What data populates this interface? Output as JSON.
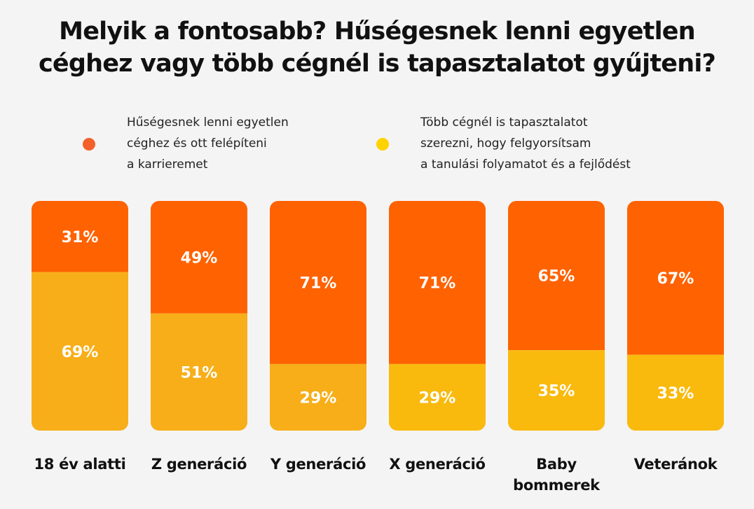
{
  "chart_data": {
    "type": "bar",
    "stacked": true,
    "title": "Melyik a  fontosabb? Hűségesnek lenni egyetlen\ncéghez vagy több cégnél is tapasztalatot gyűjteni?",
    "categories": [
      "18 év alatti",
      "Z generáció",
      "Y generáció",
      "X generáció",
      "Baby\nbommerek",
      "Veteránok"
    ],
    "series": [
      {
        "name": "Hűségesnek lenni egyetlen\ncéghez és ott felépíteni\na karrieremet",
        "values": [
          31,
          49,
          71,
          71,
          65,
          67
        ],
        "labels": [
          "31%",
          "49%",
          "71%",
          "71%",
          "65%",
          "67%"
        ],
        "color": "#FF6200"
      },
      {
        "name": "Több cégnél is tapasztalatot\nszerezni, hogy felgyorsítsam\na tanulási folyamatot és a fejlődést",
        "values": [
          69,
          51,
          29,
          29,
          35,
          33
        ],
        "labels": [
          "69%",
          "51%",
          "29%",
          "29%",
          "35%",
          "33%"
        ],
        "colors": [
          "#F7AE18",
          "#F7AE18",
          "#F7AE18",
          "#F9BA0D",
          "#F9BA0D",
          "#F9BA0D"
        ],
        "color": "#F9BA0D"
      }
    ],
    "ylim": [
      0,
      100
    ],
    "legend": "top",
    "grid": false,
    "legend_dot_colors": [
      "#F4602A",
      "#FFD200"
    ]
  }
}
